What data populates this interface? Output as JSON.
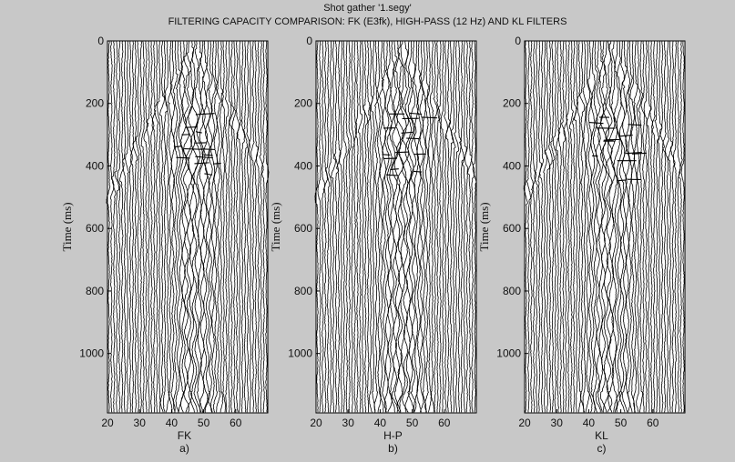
{
  "title_lines": [
    "Shot gather '1.segy'",
    "FILTERING CAPACITY COMPARISON: FK (E3fk), HIGH-PASS (12 Hz) AND KL FILTERS"
  ],
  "colors": {
    "background": "#c8c8c8",
    "plot_area": "#ffffff",
    "trace": "#000000",
    "axis": "#000000"
  },
  "chart_data": [
    {
      "type": "seismic-wiggle",
      "ylabel": "Time (ms)",
      "xlabel": "FK",
      "caption": "a)",
      "xlim": [
        20,
        70
      ],
      "ylim": [
        1190,
        0
      ],
      "xticks": [
        20,
        30,
        40,
        50,
        60
      ],
      "yticks": [
        0,
        200,
        400,
        600,
        800,
        1000
      ],
      "y_reversed": true,
      "grid": false
    },
    {
      "type": "seismic-wiggle",
      "ylabel": "Time (ms)",
      "xlabel": "H-P",
      "caption": "b)",
      "xlim": [
        20,
        70
      ],
      "ylim": [
        1190,
        0
      ],
      "xticks": [
        20,
        30,
        40,
        50,
        60
      ],
      "yticks": [
        0,
        200,
        400,
        600,
        800,
        1000
      ],
      "y_reversed": true,
      "grid": false
    },
    {
      "type": "seismic-wiggle",
      "ylabel": "Time (ms)",
      "xlabel": "KL",
      "caption": "c)",
      "xlim": [
        20,
        70
      ],
      "ylim": [
        1190,
        0
      ],
      "xticks": [
        20,
        30,
        40,
        50,
        60
      ],
      "yticks": [
        0,
        200,
        400,
        600,
        800,
        1000
      ],
      "y_reversed": true,
      "grid": false
    }
  ]
}
